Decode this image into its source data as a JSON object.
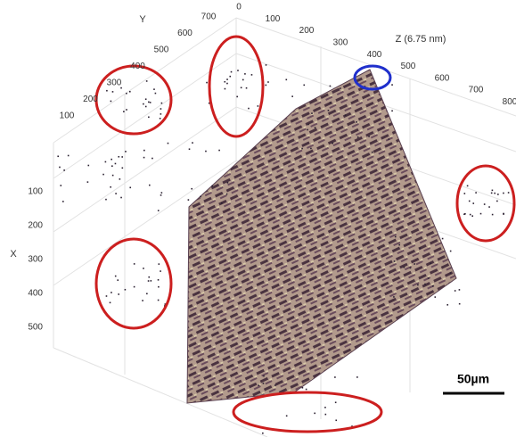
{
  "y_axis": {
    "label": "Y",
    "ticks": [
      100,
      200,
      300,
      400,
      500,
      600,
      700
    ]
  },
  "z_axis": {
    "label": "Z (6.75 nm)",
    "ticks": [
      0,
      100,
      200,
      300,
      400,
      500,
      600,
      700,
      800
    ]
  },
  "x_axis": {
    "label": "X",
    "ticks": [
      100,
      200,
      300,
      400,
      500
    ]
  },
  "scale_bar": {
    "label": "50µm"
  }
}
